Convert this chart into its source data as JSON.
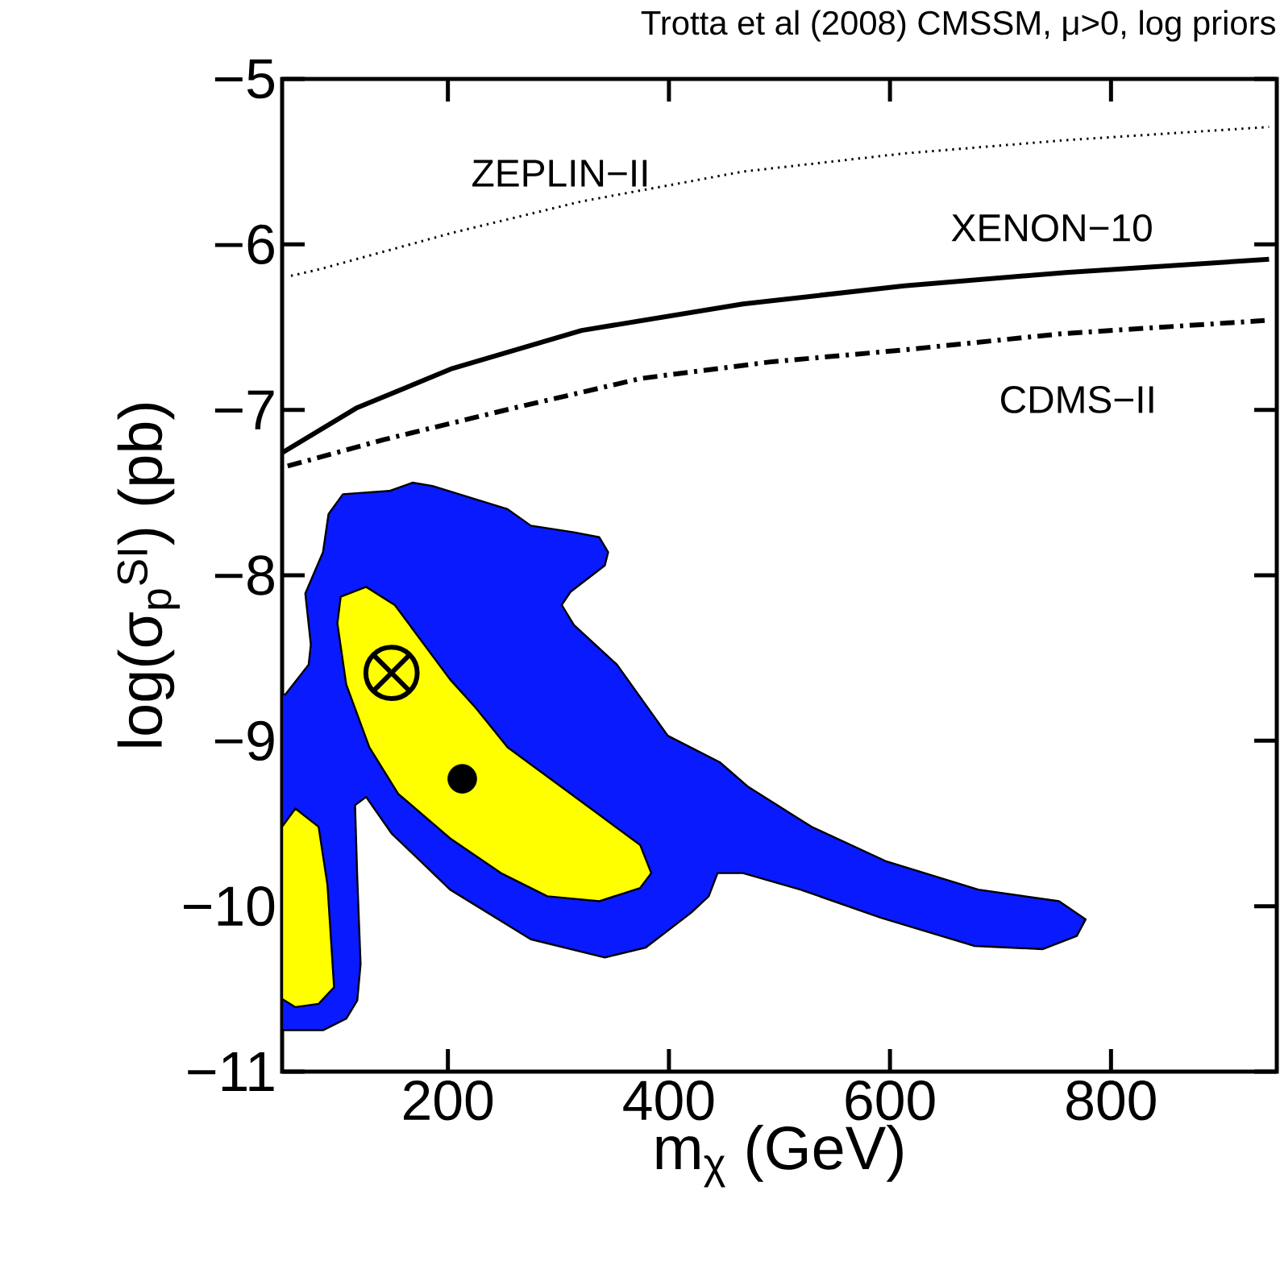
{
  "chart_data": {
    "type": "area",
    "title": "Trotta et al (2008)    CMSSM, μ>0, log priors",
    "xlabel": "m$_{χ}$ (GeV)",
    "ylabel": "log(σ$_{p}$$^{SI}$) (pb)",
    "xlim": [
      50,
      950
    ],
    "ylim": [
      -11,
      -5
    ],
    "xticks": [
      200,
      400,
      600,
      800
    ],
    "yticks": [
      {
        "value": -11,
        "label": "−11"
      },
      {
        "value": -10,
        "label": "−10"
      },
      {
        "value": -9,
        "label": "−9"
      },
      {
        "value": -8,
        "label": "−8"
      },
      {
        "value": -7,
        "label": "−7"
      },
      {
        "value": -6,
        "label": "−6"
      },
      {
        "value": -5,
        "label": "−5"
      }
    ],
    "series": [
      {
        "color": "#0a1aff",
        "x": [
          50,
          87,
          108,
          118,
          121,
          118,
          116,
          126,
          149,
          202,
          275,
          342,
          379,
          420,
          436,
          444,
          467,
          519,
          592,
          676,
          738,
          769,
          777,
          753,
          680,
          597,
          529,
          472,
          446,
          399,
          353,
          314,
          303,
          311,
          342,
          345,
          337,
          314,
          275,
          254,
          186,
          168,
          147,
          105,
          92,
          87,
          71,
          76,
          74,
          53,
          50
        ],
        "values": [
          -10.75,
          -10.75,
          -10.68,
          -10.57,
          -10.35,
          -9.83,
          -9.39,
          -9.34,
          -9.56,
          -9.9,
          -10.2,
          -10.31,
          -10.25,
          -10.04,
          -9.94,
          -9.8,
          -9.8,
          -9.9,
          -10.07,
          -10.24,
          -10.26,
          -10.18,
          -10.08,
          -9.97,
          -9.9,
          -9.73,
          -9.52,
          -9.28,
          -9.13,
          -8.97,
          -8.54,
          -8.3,
          -8.18,
          -8.1,
          -7.94,
          -7.86,
          -7.77,
          -7.74,
          -7.7,
          -7.6,
          -7.46,
          -7.44,
          -7.49,
          -7.51,
          -7.63,
          -7.86,
          -8.11,
          -8.42,
          -8.54,
          -8.72,
          -8.72
        ]
      },
      {
        "type": "area",
        "color": "#ffff00",
        "x": [
          103,
          126,
          152,
          202,
          225,
          254,
          311,
          374,
          384,
          374,
          337,
          290,
          248,
          202,
          155,
          129,
          108,
          100
        ],
        "values": [
          -8.13,
          -8.07,
          -8.18,
          -8.63,
          -8.8,
          -9.04,
          -9.32,
          -9.63,
          -9.8,
          -9.89,
          -9.97,
          -9.94,
          -9.8,
          -9.59,
          -9.32,
          -9.04,
          -8.66,
          -8.29
        ]
      },
      {
        "type": "area",
        "color": "#ffff00",
        "x": [
          50,
          62,
          83,
          91,
          97,
          83,
          62,
          50
        ],
        "values": [
          -9.52,
          -9.41,
          -9.52,
          -9.87,
          -10.49,
          -10.59,
          -10.61,
          -10.56
        ]
      },
      {
        "type": "line",
        "name": "ZEPLIN−II",
        "color": "#000000",
        "line_style": "dotted",
        "x": [
          58,
          84,
          204,
          321,
          467,
          613,
          759,
          943
        ],
        "values": [
          -6.19,
          -6.15,
          -5.93,
          -5.74,
          -5.56,
          -5.45,
          -5.37,
          -5.29
        ]
      },
      {
        "type": "line",
        "name": "XENON−10",
        "color": "#000000",
        "line_style": "solid",
        "x": [
          50,
          117,
          204,
          321,
          467,
          613,
          759,
          943
        ],
        "values": [
          -7.26,
          -6.99,
          -6.75,
          -6.52,
          -6.36,
          -6.25,
          -6.17,
          -6.09
        ]
      },
      {
        "type": "line",
        "name": "CDMS−II",
        "color": "#000000",
        "line_style": "dashdot",
        "x": [
          55,
          142,
          259,
          375,
          492,
          609,
          755,
          939
        ],
        "values": [
          -7.34,
          -7.18,
          -6.99,
          -6.81,
          -6.71,
          -6.64,
          -6.54,
          -6.46
        ]
      },
      {
        "type": "scatter",
        "marker": "cross",
        "color": "#000000",
        "x": [
          149
        ],
        "values": [
          -8.59
        ]
      },
      {
        "type": "scatter",
        "marker": "circle",
        "color": "#000000",
        "x": [
          213
        ],
        "values": [
          -9.23
        ]
      }
    ]
  }
}
